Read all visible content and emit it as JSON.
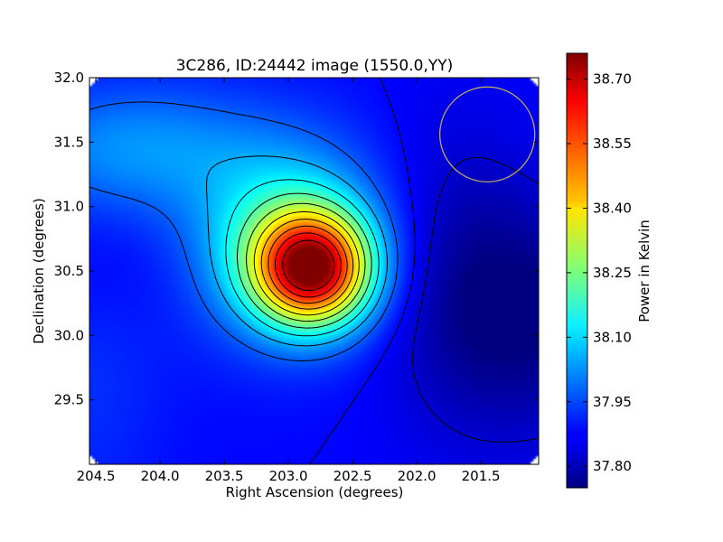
{
  "chart_data": {
    "type": "heatmap",
    "title": "3C286, ID:24442 image (1550.0,YY)",
    "xlabel": "Right Ascension (degrees)",
    "ylabel": "Declination (degrees)",
    "xlim": [
      204.55,
      201.05
    ],
    "ylim": [
      29.0,
      32.0
    ],
    "x_ticks": [
      "204.5",
      "204.0",
      "203.5",
      "203.0",
      "202.5",
      "202.0",
      "201.5"
    ],
    "x_tick_values": [
      204.5,
      204.0,
      203.5,
      203.0,
      202.5,
      202.0,
      201.5
    ],
    "y_ticks": [
      "29.5",
      "30.0",
      "30.5",
      "31.0",
      "31.5",
      "32.0"
    ],
    "y_tick_values": [
      29.5,
      30.0,
      30.5,
      31.0,
      31.5,
      32.0
    ],
    "colorbar": {
      "label": "Power in Kelvin",
      "range": [
        37.75,
        38.76
      ],
      "ticks": [
        "37.80",
        "37.95",
        "38.10",
        "38.25",
        "38.40",
        "38.55",
        "38.70"
      ],
      "tick_values": [
        37.8,
        37.95,
        38.1,
        38.25,
        38.4,
        38.55,
        38.7
      ],
      "colormap": "jet"
    },
    "peak": {
      "ra": 202.8,
      "dec": 30.52,
      "value": 38.74
    },
    "beam_circle": {
      "ra": 201.45,
      "dec": 31.56,
      "radius_deg": 0.37,
      "color": "#c8b45a"
    },
    "contour_levels": [
      37.83,
      37.88,
      37.97,
      38.05,
      38.13,
      38.21,
      38.29,
      38.37,
      38.45,
      38.53,
      38.61,
      38.69
    ],
    "contour_color": "#000000",
    "grid": false
  }
}
